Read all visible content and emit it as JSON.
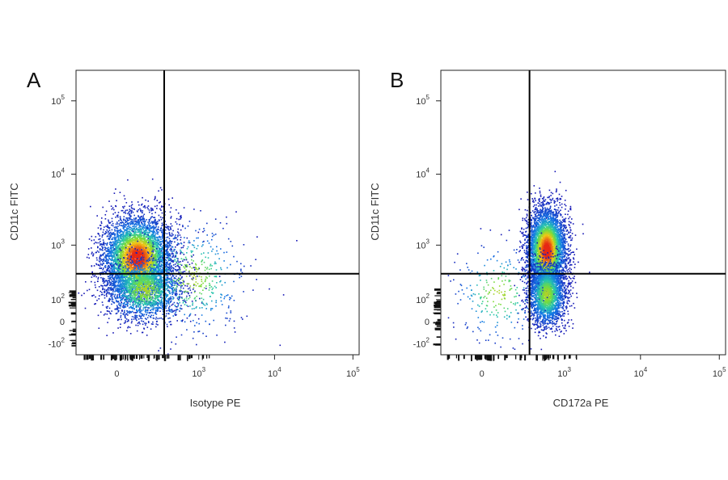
{
  "chart_data": [
    {
      "type": "scatter",
      "panel_label": "A",
      "xlabel": "Isotype PE",
      "ylabel": "CD11c FITC",
      "x_scale": "biexponential",
      "y_scale": "biexponential",
      "x_ticks": [
        {
          "value": 0,
          "base": "0",
          "exp": ""
        },
        {
          "value": 1000,
          "base": "10",
          "exp": "3"
        },
        {
          "value": 10000,
          "base": "10",
          "exp": "4"
        },
        {
          "value": 100000,
          "base": "10",
          "exp": "5"
        }
      ],
      "y_ticks": [
        {
          "value": -100,
          "base": "-10",
          "exp": "2"
        },
        {
          "value": 0,
          "base": "0",
          "exp": ""
        },
        {
          "value": 100,
          "base": "10",
          "exp": "2"
        },
        {
          "value": 1000,
          "base": "10",
          "exp": "3"
        },
        {
          "value": 10000,
          "base": "10",
          "exp": "4"
        },
        {
          "value": 100000,
          "base": "10",
          "exp": "5"
        }
      ],
      "quadrant_gate": {
        "x": 300,
        "y": 350
      },
      "populations": [
        {
          "cx": 80,
          "cy": 650,
          "spread_x": 0.22,
          "spread_y": 0.28,
          "n": 5200
        },
        {
          "cx": 120,
          "cy": 180,
          "spread_x": 0.25,
          "spread_y": 0.22,
          "n": 1800
        },
        {
          "cx": 800,
          "cy": 300,
          "spread_x": 0.35,
          "spread_y": 0.4,
          "n": 500
        }
      ]
    },
    {
      "type": "scatter",
      "panel_label": "B",
      "xlabel": "CD172a PE",
      "ylabel": "CD11c FITC",
      "x_scale": "biexponential",
      "y_scale": "biexponential",
      "x_ticks": [
        {
          "value": 0,
          "base": "0",
          "exp": ""
        },
        {
          "value": 1000,
          "base": "10",
          "exp": "3"
        },
        {
          "value": 10000,
          "base": "10",
          "exp": "4"
        },
        {
          "value": 100000,
          "base": "10",
          "exp": "5"
        }
      ],
      "y_ticks": [
        {
          "value": -100,
          "base": "-10",
          "exp": "2"
        },
        {
          "value": 0,
          "base": "0",
          "exp": ""
        },
        {
          "value": 100,
          "base": "10",
          "exp": "2"
        },
        {
          "value": 1000,
          "base": "10",
          "exp": "3"
        },
        {
          "value": 10000,
          "base": "10",
          "exp": "4"
        },
        {
          "value": 100000,
          "base": "10",
          "exp": "5"
        }
      ],
      "quadrant_gate": {
        "x": 300,
        "y": 350
      },
      "populations": [
        {
          "cx": 550,
          "cy": 850,
          "spread_x": 0.12,
          "spread_y": 0.28,
          "n": 4800
        },
        {
          "cx": 550,
          "cy": 140,
          "spread_x": 0.12,
          "spread_y": 0.22,
          "n": 2200
        },
        {
          "cx": 60,
          "cy": 150,
          "spread_x": 0.3,
          "spread_y": 0.35,
          "n": 260
        }
      ]
    }
  ]
}
